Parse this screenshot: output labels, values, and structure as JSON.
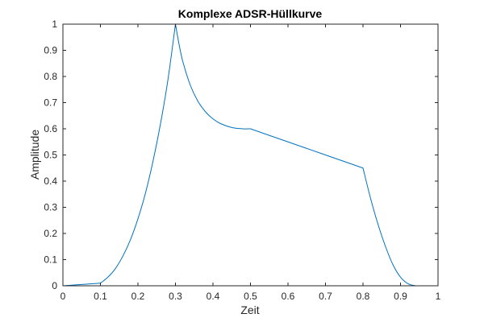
{
  "chart_data": {
    "type": "line",
    "title": "Komplexe ADSR-Hüllkurve",
    "xlabel": "Zeit",
    "ylabel": "Amplitude",
    "xlim": [
      0,
      1
    ],
    "ylim": [
      0,
      1
    ],
    "xticks": [
      "0",
      "0.1",
      "0.2",
      "0.3",
      "0.4",
      "0.5",
      "0.6",
      "0.7",
      "0.8",
      "0.9",
      "1"
    ],
    "yticks": [
      "0",
      "0.1",
      "0.2",
      "0.3",
      "0.4",
      "0.5",
      "0.6",
      "0.7",
      "0.8",
      "0.9",
      "1"
    ],
    "grid": false,
    "line_color": "#0072BD",
    "series": [
      {
        "x": [
          0,
          0.1,
          0.12,
          0.14,
          0.16,
          0.18,
          0.2,
          0.22,
          0.24,
          0.26,
          0.28,
          0.3,
          0.31,
          0.32,
          0.34,
          0.36,
          0.38,
          0.4,
          0.42,
          0.45,
          0.48,
          0.5,
          0.6,
          0.7,
          0.8,
          0.82,
          0.84,
          0.86,
          0.88,
          0.9,
          0.92,
          0.94,
          1
        ],
        "y": [
          0,
          0.01,
          0.033,
          0.066,
          0.114,
          0.176,
          0.256,
          0.354,
          0.475,
          0.618,
          0.788,
          1.0,
          0.92,
          0.855,
          0.765,
          0.705,
          0.665,
          0.638,
          0.62,
          0.605,
          0.6,
          0.6,
          0.55,
          0.5,
          0.45,
          0.335,
          0.235,
          0.15,
          0.08,
          0.033,
          0.008,
          0.0,
          0
        ]
      }
    ]
  }
}
